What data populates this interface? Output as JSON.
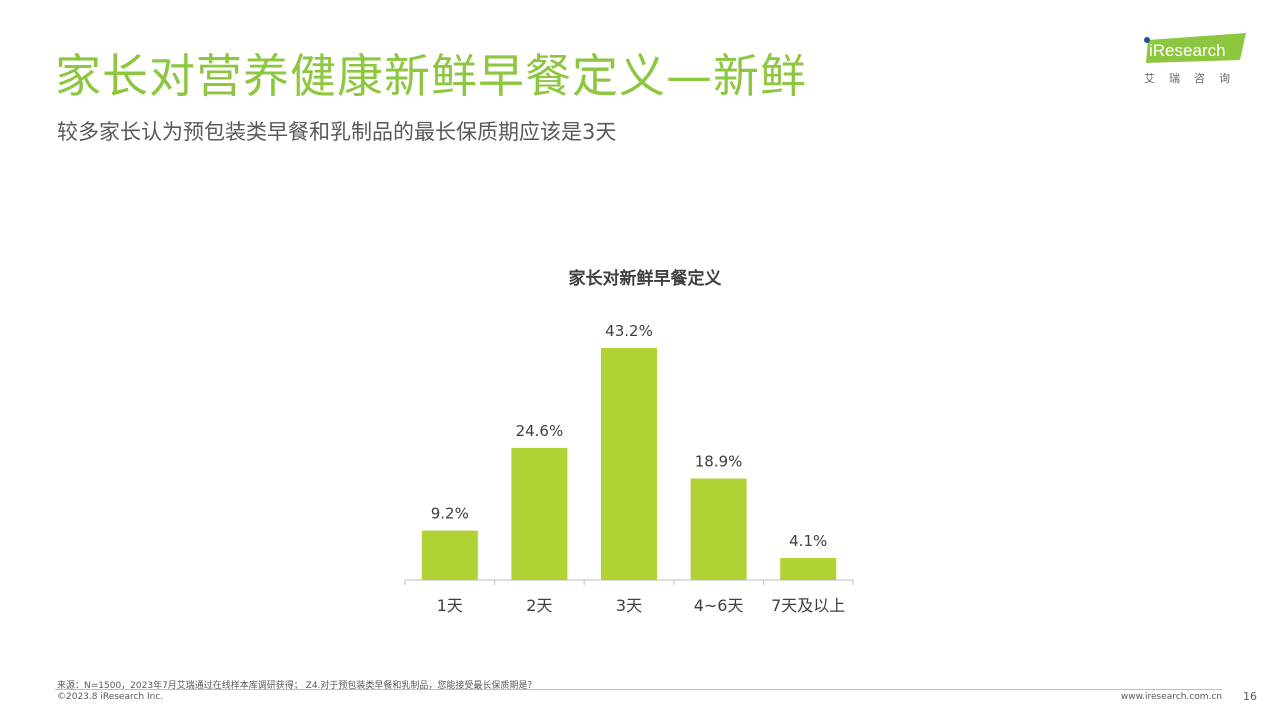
{
  "header": {
    "title": "家长对营养健康新鲜早餐定义—新鲜",
    "subtitle": "较多家长认为预包装类早餐和乳制品的最长保质期应该是3天"
  },
  "logo": {
    "brand": "iResearch",
    "cn": "艾瑞咨询",
    "color": "#8dc63f",
    "dot_color": "#1f4e9a"
  },
  "chart_data": {
    "type": "bar",
    "title": "家长对新鲜早餐定义",
    "categories": [
      "1天",
      "2天",
      "3天",
      "4~6天",
      "7天及以上"
    ],
    "values": [
      9.2,
      24.6,
      43.2,
      18.9,
      4.1
    ],
    "value_labels": [
      "9.2%",
      "24.6%",
      "43.2%",
      "18.9%",
      "4.1%"
    ],
    "unit": "%",
    "bar_color": "#b0d235",
    "ylim": [
      0,
      43.2
    ],
    "grid": false,
    "legend": "none"
  },
  "footer": {
    "source": "来源：N=1500，2023年7月艾瑞通过在线样本库调研获得； Z4.对于预包装类早餐和乳制品，您能接受最长保质期是？",
    "copyright": "©2023.8 iResearch Inc.",
    "website": "www.iresearch.com.cn",
    "page": "16"
  }
}
